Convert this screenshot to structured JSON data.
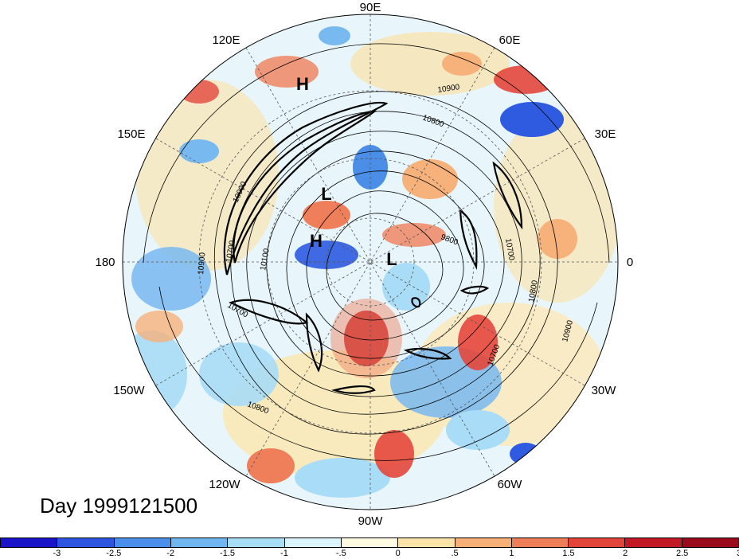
{
  "map": {
    "projection": "north-polar-stereographic",
    "lon_labels": [
      {
        "text": "90E",
        "lon": 90
      },
      {
        "text": "60E",
        "lon": 60
      },
      {
        "text": "30E",
        "lon": 30
      },
      {
        "text": "0",
        "lon": 0
      },
      {
        "text": "30W",
        "lon": -30
      },
      {
        "text": "60W",
        "lon": -60
      },
      {
        "text": "90W",
        "lon": -90
      },
      {
        "text": "120W",
        "lon": -120
      },
      {
        "text": "150W",
        "lon": -150
      },
      {
        "text": "180",
        "lon": 180
      },
      {
        "text": "150E",
        "lon": 150
      },
      {
        "text": "120E",
        "lon": 120
      }
    ],
    "pressure_centers": [
      {
        "text": "H",
        "where": "near 120E midlatitudes"
      },
      {
        "text": "L",
        "where": "north of Siberia"
      },
      {
        "text": "H",
        "where": "near pole, 150E side"
      },
      {
        "text": "L",
        "where": "near pole, Atlantic side"
      }
    ],
    "contour_labels": [
      "10900",
      "10800",
      "10900",
      "10700",
      "10100",
      "10900",
      "10700",
      "9800",
      "10700",
      "10800",
      "10900",
      "10700",
      "10800"
    ],
    "colors": {
      "neg3": "#1a1acc",
      "neg25": "#2e5be0",
      "neg2": "#4a8ee8",
      "neg15": "#78b9f0",
      "neg1": "#a9dcf6",
      "neg05": "#dbf3fb",
      "pos0": "#fffbe0",
      "pos05": "#fbe3a6",
      "pos1": "#f6b27a",
      "pos15": "#ef7f5a",
      "pos2": "#e4473d",
      "pos25": "#c41b26",
      "pos3": "#9c0c1c"
    }
  },
  "day_label": "Day 1999121500",
  "colorbar": {
    "colors": [
      "#1a14c8",
      "#2d55e0",
      "#4a8fe9",
      "#70b6f1",
      "#a7def6",
      "#dcf4fb",
      "#fffbe2",
      "#fbe4a9",
      "#f6b077",
      "#ee7e58",
      "#e2443a",
      "#c11a25",
      "#9a0b1c"
    ],
    "ticks": [
      "-3",
      "-2.5",
      "-2",
      "-1.5",
      "-1",
      "-.5",
      "0",
      ".5",
      "1",
      "1.5",
      "2",
      "2.5",
      "3"
    ]
  }
}
